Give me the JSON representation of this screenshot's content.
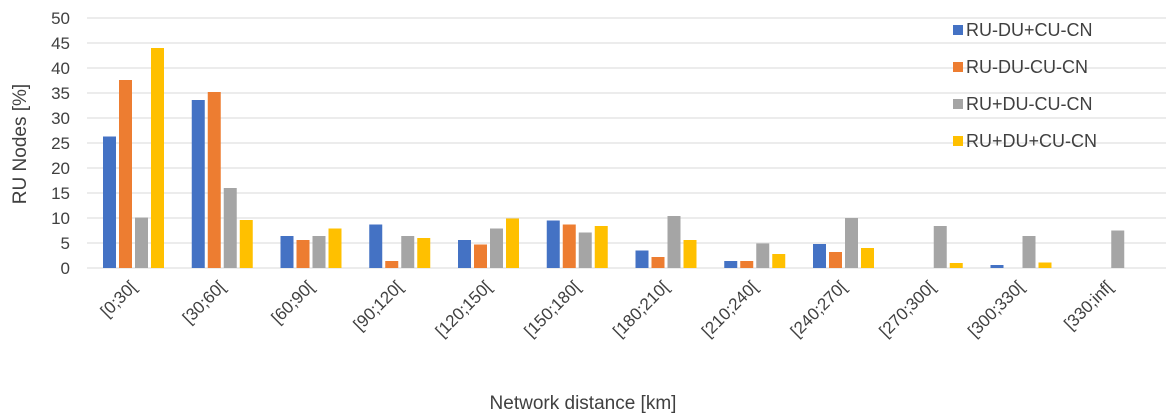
{
  "chart_data": {
    "type": "bar",
    "title": "",
    "xlabel": "Network distance [km]",
    "ylabel": "RU Nodes [%]",
    "ylim": [
      0,
      50
    ],
    "yticks": [
      "0",
      "5",
      "10",
      "15",
      "20",
      "25",
      "30",
      "35",
      "40",
      "45",
      "50"
    ],
    "grid": true,
    "legend_position": "top-right",
    "categories": [
      "[0;30[",
      "[30;60[",
      "[60;90[",
      "[90;120[",
      "[120;150[",
      "[150;180[",
      "[180;210[",
      "[210;240[",
      "[240;270[",
      "[270;300[",
      "[300;330[",
      "[330;inf["
    ],
    "series": [
      {
        "name": "RU-DU+CU-CN",
        "color": "#4472C4",
        "values": [
          26.3,
          33.6,
          6.4,
          8.7,
          5.6,
          9.5,
          3.5,
          1.4,
          4.8,
          0,
          0.6,
          0
        ]
      },
      {
        "name": "RU-DU-CU-CN",
        "color": "#ED7D31",
        "values": [
          37.6,
          35.2,
          5.6,
          1.4,
          4.7,
          8.7,
          2.2,
          1.4,
          3.2,
          0,
          0,
          0
        ]
      },
      {
        "name": "RU+DU-CU-CN",
        "color": "#A5A5A5",
        "values": [
          10.1,
          16.0,
          6.4,
          6.4,
          7.9,
          7.1,
          10.4,
          4.9,
          10.0,
          8.4,
          6.4,
          7.5
        ]
      },
      {
        "name": "RU+DU+CU-CN",
        "color": "#FFC000",
        "values": [
          44.0,
          9.6,
          7.9,
          6.0,
          9.9,
          8.4,
          5.6,
          2.8,
          4.0,
          1.0,
          1.1,
          0
        ]
      }
    ]
  }
}
